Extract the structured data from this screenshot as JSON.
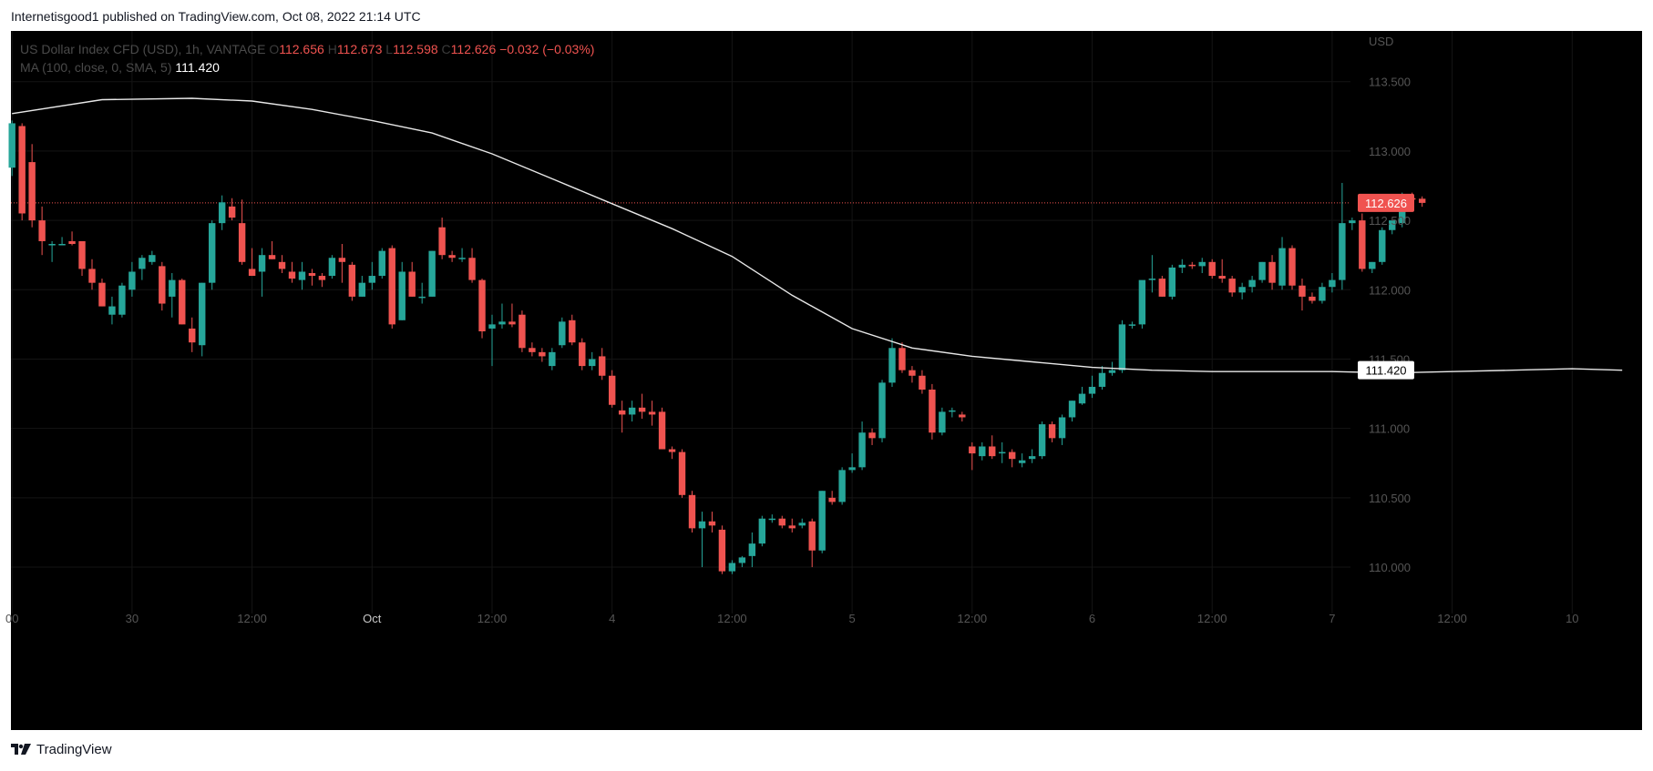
{
  "header": {
    "published_text": "Internetisgood1 published on TradingView.com, Oct 08, 2022 21:14 UTC"
  },
  "legend": {
    "symbol_text": "US Dollar Index CFD (USD), 1h, VANTAGE",
    "o_label": "O",
    "o_value": "112.656",
    "h_label": "H",
    "h_value": "112.673",
    "l_label": "L",
    "l_value": "112.598",
    "c_label": "C",
    "c_value": "112.626",
    "change": "−0.032 (−0.03%)",
    "ma_text": "MA (100, close, 0, SMA, 5)",
    "ma_value": "111.420"
  },
  "footer": {
    "brand": "TradingView"
  },
  "colors": {
    "up": "#26a69a",
    "down": "#ef5350",
    "ma_line": "#e8e8e8",
    "axis_text": "#555555",
    "price_label_bg": "#f05350"
  },
  "chart_data": {
    "type": "candlestick",
    "currency": "USD",
    "ylim": [
      109.6,
      113.8
    ],
    "y_ticks": [
      "110.000",
      "110.500",
      "111.000",
      "111.500",
      "112.000",
      "112.500",
      "113.000",
      "113.500"
    ],
    "x_ticks": [
      {
        "label": "00",
        "i": 0
      },
      {
        "label": "30",
        "i": 12
      },
      {
        "label": "12:00",
        "i": 24
      },
      {
        "label": "Oct",
        "i": 36
      },
      {
        "label": "12:00",
        "i": 48
      },
      {
        "label": "4",
        "i": 60
      },
      {
        "label": "12:00",
        "i": 72
      },
      {
        "label": "5",
        "i": 84
      },
      {
        "label": "12:00",
        "i": 96
      },
      {
        "label": "6",
        "i": 108
      },
      {
        "label": "12:00",
        "i": 120
      },
      {
        "label": "7",
        "i": 132
      },
      {
        "label": "12:00",
        "i": 144
      },
      {
        "label": "10",
        "i": 156
      }
    ],
    "x_range": [
      0,
      158
    ],
    "last_price": "112.626",
    "last_price_value": 112.626,
    "ma_label": "111.420",
    "ma_label_value": 111.42,
    "candles": [
      [
        112.88,
        113.22,
        112.82,
        113.2
      ],
      [
        113.18,
        113.2,
        112.5,
        112.55
      ],
      [
        112.92,
        113.05,
        112.45,
        112.5
      ],
      [
        112.5,
        112.6,
        112.25,
        112.35
      ],
      [
        112.32,
        112.35,
        112.2,
        112.33
      ],
      [
        112.33,
        112.38,
        112.32,
        112.33
      ],
      [
        112.35,
        112.42,
        112.32,
        112.33
      ],
      [
        112.35,
        112.35,
        112.1,
        112.15
      ],
      [
        112.15,
        112.22,
        112.0,
        112.05
      ],
      [
        112.05,
        112.08,
        111.88,
        111.88
      ],
      [
        111.82,
        111.95,
        111.75,
        111.88
      ],
      [
        111.82,
        112.05,
        111.8,
        112.03
      ],
      [
        112.0,
        112.2,
        111.95,
        112.13
      ],
      [
        112.15,
        112.25,
        112.07,
        112.23
      ],
      [
        112.2,
        112.28,
        112.18,
        112.25
      ],
      [
        112.17,
        112.2,
        111.85,
        111.9
      ],
      [
        111.95,
        112.12,
        111.8,
        112.07
      ],
      [
        112.07,
        112.08,
        111.75,
        111.75
      ],
      [
        111.72,
        111.8,
        111.55,
        111.62
      ],
      [
        111.6,
        112.05,
        111.52,
        112.05
      ],
      [
        112.05,
        112.5,
        112.0,
        112.48
      ],
      [
        112.48,
        112.68,
        112.43,
        112.63
      ],
      [
        112.6,
        112.66,
        112.5,
        112.52
      ],
      [
        112.48,
        112.65,
        112.18,
        112.2
      ],
      [
        112.15,
        112.3,
        112.1,
        112.1
      ],
      [
        112.13,
        112.3,
        111.95,
        112.25
      ],
      [
        112.25,
        112.35,
        112.22,
        112.22
      ],
      [
        112.2,
        112.25,
        112.12,
        112.15
      ],
      [
        112.13,
        112.2,
        112.05,
        112.08
      ],
      [
        112.07,
        112.2,
        112.0,
        112.13
      ],
      [
        112.12,
        112.15,
        112.03,
        112.1
      ],
      [
        112.1,
        112.12,
        112.02,
        112.07
      ],
      [
        112.1,
        112.25,
        112.08,
        112.23
      ],
      [
        112.23,
        112.33,
        112.05,
        112.2
      ],
      [
        112.18,
        112.2,
        111.92,
        111.95
      ],
      [
        111.95,
        112.1,
        111.95,
        112.05
      ],
      [
        112.05,
        112.2,
        112.0,
        112.1
      ],
      [
        112.1,
        112.3,
        112.08,
        112.28
      ],
      [
        112.3,
        112.32,
        111.72,
        111.75
      ],
      [
        111.78,
        112.2,
        111.78,
        112.13
      ],
      [
        112.13,
        112.2,
        111.95,
        111.95
      ],
      [
        111.95,
        112.05,
        111.9,
        111.95
      ],
      [
        111.95,
        112.28,
        111.95,
        112.28
      ],
      [
        112.45,
        112.52,
        112.22,
        112.25
      ],
      [
        112.25,
        112.28,
        112.2,
        112.23
      ],
      [
        112.23,
        112.3,
        112.2,
        112.23
      ],
      [
        112.23,
        112.3,
        112.05,
        112.07
      ],
      [
        112.07,
        112.08,
        111.65,
        111.7
      ],
      [
        111.72,
        111.82,
        111.45,
        111.75
      ],
      [
        111.75,
        111.9,
        111.72,
        111.77
      ],
      [
        111.77,
        111.9,
        111.73,
        111.75
      ],
      [
        111.82,
        111.85,
        111.55,
        111.58
      ],
      [
        111.58,
        111.62,
        111.52,
        111.55
      ],
      [
        111.55,
        111.58,
        111.48,
        111.52
      ],
      [
        111.45,
        111.58,
        111.42,
        111.55
      ],
      [
        111.6,
        111.8,
        111.58,
        111.77
      ],
      [
        111.78,
        111.82,
        111.6,
        111.62
      ],
      [
        111.62,
        111.65,
        111.42,
        111.45
      ],
      [
        111.45,
        111.55,
        111.42,
        111.5
      ],
      [
        111.52,
        111.58,
        111.35,
        111.38
      ],
      [
        111.38,
        111.42,
        111.15,
        111.17
      ],
      [
        111.13,
        111.2,
        110.97,
        111.1
      ],
      [
        111.1,
        111.2,
        111.05,
        111.15
      ],
      [
        111.15,
        111.25,
        111.07,
        111.12
      ],
      [
        111.12,
        111.2,
        111.02,
        111.1
      ],
      [
        111.12,
        111.15,
        110.85,
        110.85
      ],
      [
        110.85,
        110.87,
        110.78,
        110.83
      ],
      [
        110.83,
        110.85,
        110.5,
        110.52
      ],
      [
        110.52,
        110.55,
        110.25,
        110.28
      ],
      [
        110.28,
        110.4,
        110.0,
        110.33
      ],
      [
        110.33,
        110.4,
        110.25,
        110.3
      ],
      [
        110.27,
        110.3,
        109.95,
        109.97
      ],
      [
        109.97,
        110.05,
        109.95,
        110.03
      ],
      [
        110.03,
        110.08,
        110.0,
        110.07
      ],
      [
        110.08,
        110.25,
        110.0,
        110.17
      ],
      [
        110.17,
        110.37,
        110.15,
        110.35
      ],
      [
        110.35,
        110.38,
        110.32,
        110.35
      ],
      [
        110.35,
        110.37,
        110.28,
        110.3
      ],
      [
        110.3,
        110.35,
        110.25,
        110.28
      ],
      [
        110.3,
        110.35,
        110.28,
        110.32
      ],
      [
        110.33,
        110.35,
        110.0,
        110.12
      ],
      [
        110.12,
        110.55,
        110.1,
        110.55
      ],
      [
        110.5,
        110.55,
        110.45,
        110.47
      ],
      [
        110.47,
        110.72,
        110.45,
        110.7
      ],
      [
        110.7,
        110.82,
        110.68,
        110.72
      ],
      [
        110.72,
        111.05,
        110.7,
        110.97
      ],
      [
        110.97,
        111.0,
        110.88,
        110.93
      ],
      [
        110.93,
        111.35,
        110.9,
        111.33
      ],
      [
        111.33,
        111.65,
        111.3,
        111.58
      ],
      [
        111.58,
        111.62,
        111.4,
        111.42
      ],
      [
        111.42,
        111.45,
        111.33,
        111.38
      ],
      [
        111.38,
        111.42,
        111.25,
        111.28
      ],
      [
        111.28,
        111.32,
        110.92,
        110.97
      ],
      [
        110.97,
        111.15,
        110.95,
        111.12
      ],
      [
        111.12,
        111.15,
        111.08,
        111.13
      ],
      [
        111.1,
        111.12,
        111.05,
        111.08
      ],
      [
        110.87,
        110.9,
        110.7,
        110.82
      ],
      [
        110.8,
        110.9,
        110.77,
        110.87
      ],
      [
        110.87,
        110.95,
        110.78,
        110.8
      ],
      [
        110.82,
        110.9,
        110.75,
        110.83
      ],
      [
        110.83,
        110.85,
        110.72,
        110.78
      ],
      [
        110.75,
        110.82,
        110.72,
        110.77
      ],
      [
        110.78,
        110.85,
        110.75,
        110.8
      ],
      [
        110.8,
        111.05,
        110.78,
        111.03
      ],
      [
        111.03,
        111.05,
        110.9,
        110.93
      ],
      [
        110.93,
        111.1,
        110.88,
        111.08
      ],
      [
        111.08,
        111.2,
        111.05,
        111.2
      ],
      [
        111.18,
        111.3,
        111.17,
        111.25
      ],
      [
        111.25,
        111.38,
        111.22,
        111.3
      ],
      [
        111.3,
        111.45,
        111.28,
        111.4
      ],
      [
        111.4,
        111.48,
        111.38,
        111.42
      ],
      [
        111.42,
        111.78,
        111.4,
        111.75
      ],
      [
        111.75,
        111.77,
        111.72,
        111.75
      ],
      [
        111.75,
        112.05,
        111.72,
        112.07
      ],
      [
        112.07,
        112.25,
        111.98,
        112.08
      ],
      [
        112.08,
        112.1,
        111.95,
        111.95
      ],
      [
        111.95,
        112.18,
        111.93,
        112.16
      ],
      [
        112.16,
        112.22,
        112.12,
        112.18
      ],
      [
        112.18,
        112.2,
        112.15,
        112.17
      ],
      [
        112.17,
        112.23,
        112.12,
        112.2
      ],
      [
        112.2,
        112.22,
        112.08,
        112.1
      ],
      [
        112.1,
        112.22,
        112.05,
        112.08
      ],
      [
        112.08,
        112.1,
        111.95,
        111.98
      ],
      [
        111.98,
        112.05,
        111.93,
        112.02
      ],
      [
        112.02,
        112.1,
        111.98,
        112.07
      ],
      [
        112.07,
        112.2,
        112.05,
        112.2
      ],
      [
        112.2,
        112.25,
        112.0,
        112.05
      ],
      [
        112.03,
        112.38,
        112.0,
        112.3
      ],
      [
        112.3,
        112.32,
        112.0,
        112.03
      ],
      [
        112.03,
        112.08,
        111.85,
        111.95
      ],
      [
        111.95,
        111.98,
        111.9,
        111.92
      ],
      [
        111.92,
        112.05,
        111.9,
        112.02
      ],
      [
        112.02,
        112.12,
        111.98,
        112.07
      ],
      [
        112.07,
        112.77,
        112.0,
        112.48
      ],
      [
        112.48,
        112.52,
        112.43,
        112.5
      ],
      [
        112.5,
        112.55,
        112.13,
        112.15
      ],
      [
        112.15,
        112.2,
        112.12,
        112.2
      ],
      [
        112.2,
        112.45,
        112.18,
        112.43
      ],
      [
        112.43,
        112.5,
        112.4,
        112.5
      ],
      [
        112.48,
        112.7,
        112.45,
        112.68
      ],
      [
        112.66,
        112.7,
        112.63,
        112.65
      ],
      [
        112.656,
        112.673,
        112.598,
        112.626
      ]
    ],
    "ma": [
      [
        0,
        113.27
      ],
      [
        9,
        113.37
      ],
      [
        18,
        113.38
      ],
      [
        24,
        113.36
      ],
      [
        30,
        113.3
      ],
      [
        36,
        113.22
      ],
      [
        42,
        113.13
      ],
      [
        48,
        112.98
      ],
      [
        54,
        112.8
      ],
      [
        60,
        112.62
      ],
      [
        66,
        112.44
      ],
      [
        72,
        112.24
      ],
      [
        78,
        111.96
      ],
      [
        84,
        111.72
      ],
      [
        90,
        111.58
      ],
      [
        96,
        111.52
      ],
      [
        102,
        111.48
      ],
      [
        108,
        111.44
      ],
      [
        114,
        111.42
      ],
      [
        120,
        111.41
      ],
      [
        126,
        111.41
      ],
      [
        132,
        111.41
      ],
      [
        138,
        111.4
      ],
      [
        144,
        111.41
      ],
      [
        150,
        111.42
      ],
      [
        156,
        111.43
      ],
      [
        161,
        111.42
      ]
    ]
  }
}
